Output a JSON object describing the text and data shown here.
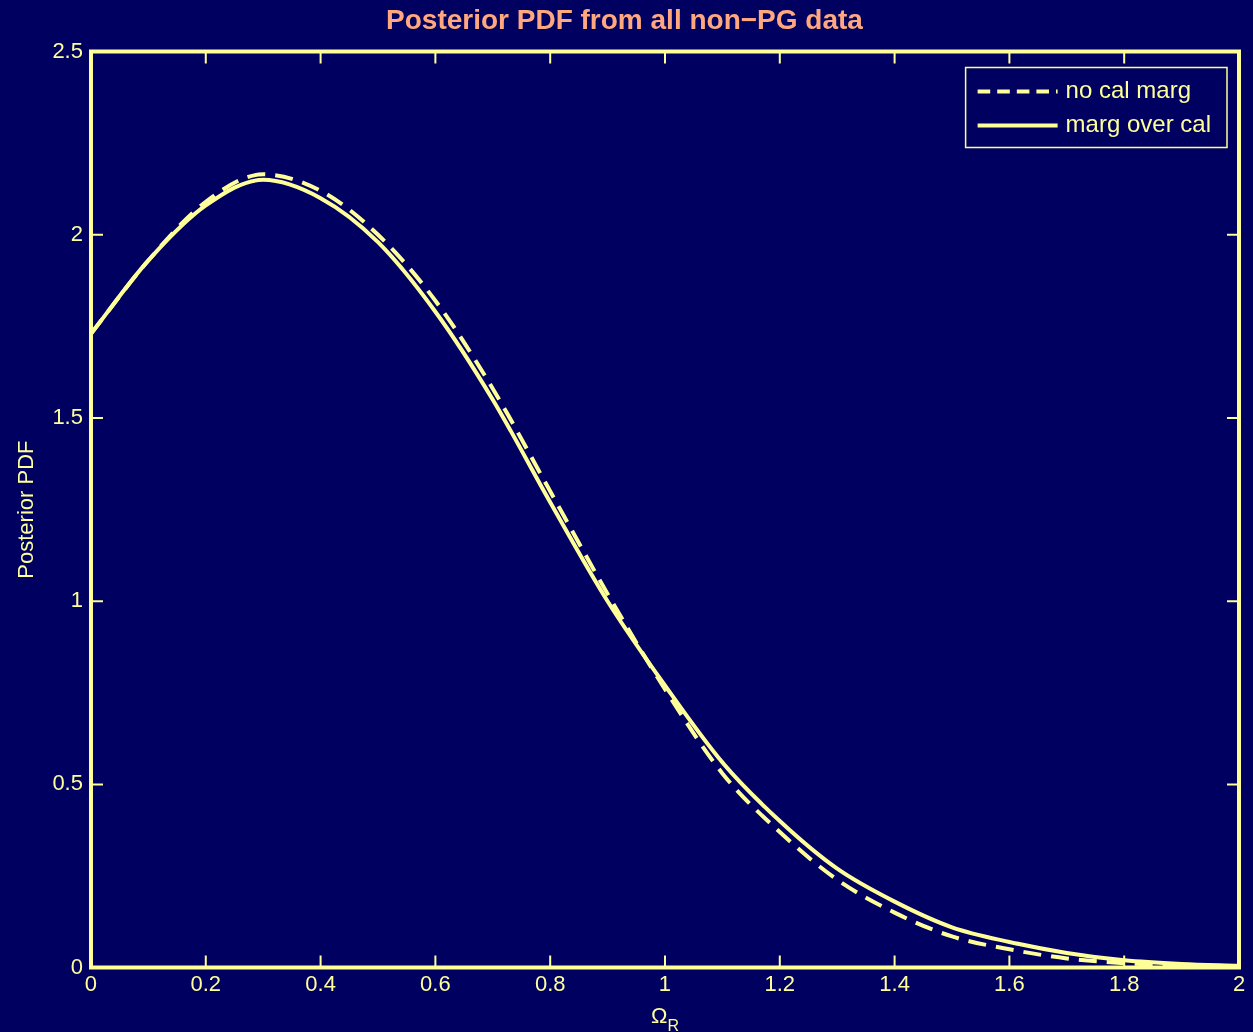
{
  "chart_data": {
    "type": "line",
    "title": "Posterior PDF from all non−PG data",
    "xlabel": "Ω$_{R}$",
    "ylabel": "Posterior PDF",
    "x": [
      0,
      0.1,
      0.2,
      0.3,
      0.4,
      0.5,
      0.6,
      0.7,
      0.8,
      0.9,
      1.0,
      1.1,
      1.2,
      1.3,
      1.4,
      1.5,
      1.6,
      1.7,
      1.8,
      1.9,
      2.0
    ],
    "series": [
      {
        "name": "no cal marg",
        "color": "#ffff99",
        "line_style": "dashed",
        "values": [
          1.73,
          1.93,
          2.09,
          2.165,
          2.12,
          2.0,
          1.82,
          1.58,
          1.3,
          1.02,
          0.76,
          0.53,
          0.37,
          0.24,
          0.15,
          0.085,
          0.05,
          0.025,
          0.012,
          0.006,
          0.003
        ]
      },
      {
        "name": "marg over cal",
        "color": "#ffff99",
        "line_style": "solid",
        "values": [
          1.73,
          1.93,
          2.08,
          2.15,
          2.1,
          1.98,
          1.79,
          1.55,
          1.27,
          1.0,
          0.77,
          0.56,
          0.4,
          0.27,
          0.18,
          0.11,
          0.07,
          0.04,
          0.02,
          0.01,
          0.005
        ]
      }
    ],
    "xlim": [
      0,
      2
    ],
    "xticks": [
      0,
      0.2,
      0.4,
      0.6,
      0.8,
      1,
      1.2,
      1.4,
      1.6,
      1.8,
      2
    ],
    "ylim": [
      0,
      2.5
    ],
    "yticks": [
      0,
      0.5,
      1,
      1.5,
      2,
      2.5
    ],
    "grid": false,
    "legend": "top right",
    "marker": "none"
  }
}
